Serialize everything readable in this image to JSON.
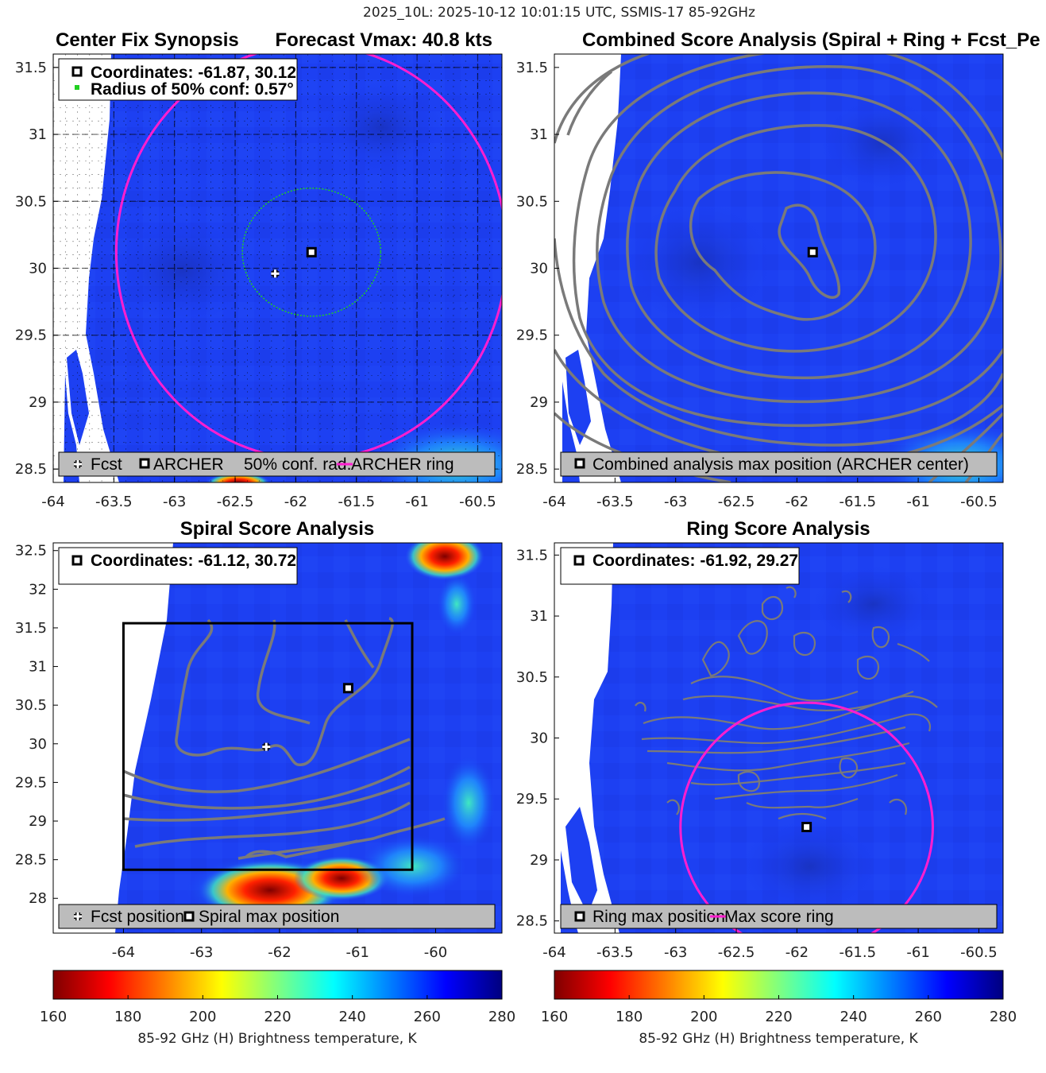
{
  "figure": {
    "suptitle": "2025_10L: 2025-10-12 10:01:15 UTC, SSMIS-17 85-92GHz",
    "colorbar": {
      "label": "85-92 GHz (H) Brightness temperature, K",
      "range": [
        160,
        280
      ],
      "ticks": [
        "160",
        "180",
        "200",
        "220",
        "240",
        "260",
        "280"
      ]
    }
  },
  "chart_data": [
    {
      "id": "p1",
      "type": "heatmap",
      "title_left": "Center Fix Synopsis",
      "title_right": "Forecast Vmax: 40.8 kts",
      "xlim": [
        -64,
        -60.3
      ],
      "ylim": [
        28.4,
        31.6
      ],
      "xticks": [
        -64,
        -63.5,
        -63,
        -62.5,
        -62,
        -61.5,
        -61,
        -60.5
      ],
      "yticks": [
        28.5,
        29,
        29.5,
        30,
        30.5,
        31,
        31.5
      ],
      "xtick_labels": [
        "-64",
        "-63.5",
        "-63",
        "-62.5",
        "-62",
        "-61.5",
        "-61",
        "-60.5"
      ],
      "ytick_labels": [
        "28.5",
        "29",
        "29.5",
        "30",
        "30.5",
        "31",
        "31.5"
      ],
      "grid": true,
      "info": [
        "Coordinates: -61.87, 30.12",
        "Radius of 50% conf: 0.57°"
      ],
      "legend": [
        "Fcst",
        "ARCHER",
        "50% conf. rad.",
        "ARCHER ring"
      ],
      "legend_position": "bottom",
      "fcst_position": [
        -62.17,
        29.96
      ],
      "archer_center": [
        -61.87,
        30.12
      ],
      "conf_radius_deg": 0.57,
      "archer_ring_radius_deg": 1.61,
      "colors": {
        "ring": "#ff1ecf",
        "conf": "#22d022"
      }
    },
    {
      "id": "p2",
      "type": "heatmap",
      "title": "Combined Score Analysis (Spiral + Ring + Fcst_Pe",
      "xlim": [
        -64,
        -60.3
      ],
      "ylim": [
        28.4,
        31.6
      ],
      "xticks": [
        -64,
        -63.5,
        -63,
        -62.5,
        -62,
        -61.5,
        -61,
        -60.5
      ],
      "yticks": [
        28.5,
        29,
        29.5,
        30,
        30.5,
        31,
        31.5
      ],
      "xtick_labels": [
        "-64",
        "-63.5",
        "-63",
        "-62.5",
        "-62",
        "-61.5",
        "-61",
        "-60.5"
      ],
      "ytick_labels": [
        "28.5",
        "29",
        "29.5",
        "30",
        "30.5",
        "31",
        "31.5"
      ],
      "legend": [
        "Combined analysis max position (ARCHER center)"
      ],
      "legend_position": "bottom",
      "max_position": [
        -61.87,
        30.12
      ]
    },
    {
      "id": "p3",
      "type": "heatmap",
      "title": "Spiral Score Analysis",
      "xlim": [
        -64.9,
        -59.15
      ],
      "ylim": [
        27.55,
        32.6
      ],
      "xticks": [
        -64,
        -63,
        -62,
        -61,
        -60
      ],
      "yticks": [
        28,
        28.5,
        29,
        29.5,
        30,
        30.5,
        31,
        31.5,
        32,
        32.5
      ],
      "xtick_labels": [
        "-64",
        "-63",
        "-62",
        "-61",
        "-60"
      ],
      "ytick_labels": [
        "28",
        "28.5",
        "29",
        "29.5",
        "30",
        "30.5",
        "31",
        "31.5",
        "32",
        "32.5"
      ],
      "info": [
        "Coordinates: -61.12, 30.72"
      ],
      "legend": [
        "Fcst position",
        "Spiral max position"
      ],
      "legend_position": "bottom",
      "fcst_position": [
        -62.17,
        29.96
      ],
      "spiral_max": [
        -61.12,
        30.72
      ],
      "box_xlim": [
        -64.0,
        -60.3
      ],
      "box_ylim": [
        28.37,
        31.56
      ]
    },
    {
      "id": "p4",
      "type": "heatmap",
      "title": "Ring Score Analysis",
      "xlim": [
        -64,
        -60.3
      ],
      "ylim": [
        28.4,
        31.6
      ],
      "xticks": [
        -64,
        -63.5,
        -63,
        -62.5,
        -62,
        -61.5,
        -61,
        -60.5
      ],
      "yticks": [
        28.5,
        29,
        29.5,
        30,
        30.5,
        31,
        31.5
      ],
      "xtick_labels": [
        "-64",
        "-63.5",
        "-63",
        "-62.5",
        "-62",
        "-61.5",
        "-61",
        "-60.5"
      ],
      "ytick_labels": [
        "28.5",
        "29",
        "29.5",
        "30",
        "30.5",
        "31",
        "31.5"
      ],
      "info": [
        "Coordinates: -61.92, 29.27"
      ],
      "legend": [
        "Ring max position",
        "Max score ring"
      ],
      "legend_position": "bottom",
      "ring_max": [
        -61.92,
        29.27
      ],
      "ring_radius_deg": 1.04
    }
  ]
}
